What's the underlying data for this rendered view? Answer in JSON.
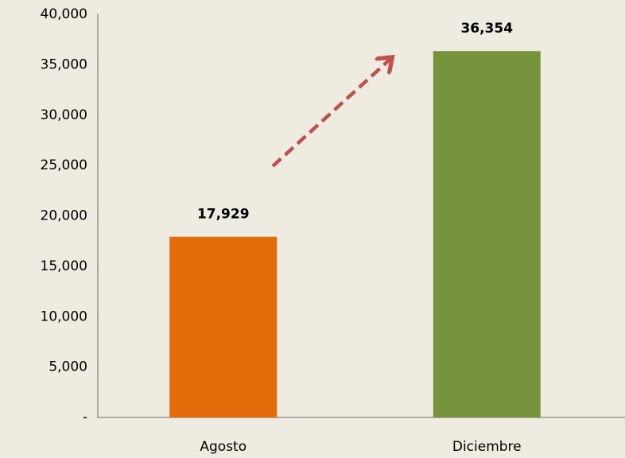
{
  "chart_data": {
    "type": "bar",
    "categories": [
      "Agosto",
      "Diciembre"
    ],
    "values": [
      17929,
      36354
    ],
    "value_labels": [
      "17,929",
      "36,354"
    ],
    "colors": [
      "#e46c0a",
      "#77933c"
    ],
    "ylim": [
      0,
      40000
    ],
    "yticks": [
      {
        "value": 0,
        "label": "-"
      },
      {
        "value": 5000,
        "label": "5,000"
      },
      {
        "value": 10000,
        "label": "10,000"
      },
      {
        "value": 15000,
        "label": "15,000"
      },
      {
        "value": 20000,
        "label": "20,000"
      },
      {
        "value": 25000,
        "label": "25,000"
      },
      {
        "value": 30000,
        "label": "30,000"
      },
      {
        "value": 35000,
        "label": "35,000"
      },
      {
        "value": 40000,
        "label": "40,000"
      }
    ],
    "grid": false
  }
}
